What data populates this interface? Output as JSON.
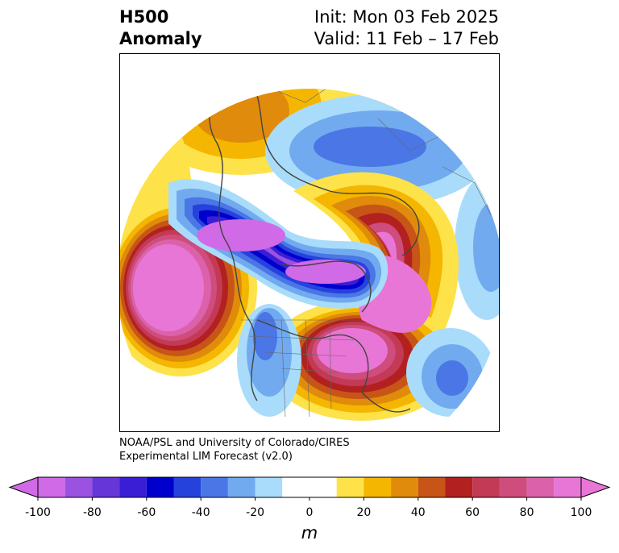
{
  "title": {
    "left_line1": "H500",
    "left_line2": "Anomaly",
    "right_line1": "Init: Mon 03 Feb 2025",
    "right_line2": "Valid: 11 Feb – 17 Feb"
  },
  "credit": {
    "line1": "NOAA/PSL and University of Colorado/CIRES",
    "line2": "Experimental LIM Forecast (v2.0)"
  },
  "colorbar": {
    "unit": "m",
    "ticks": [
      "-100",
      "-80",
      "-60",
      "-40",
      "-20",
      "0",
      "20",
      "40",
      "60",
      "80",
      "100"
    ],
    "levels": [
      -100,
      -90,
      -80,
      -70,
      -60,
      -50,
      -40,
      -30,
      -20,
      -10,
      10,
      20,
      30,
      40,
      50,
      60,
      70,
      80,
      90,
      100
    ],
    "colors": [
      "#d06ae6",
      "#9b52e0",
      "#6636d8",
      "#3a1ed6",
      "#0000cd",
      "#2642dd",
      "#4a76e6",
      "#72aaef",
      "#a9dcfb",
      "#ffffff",
      "#fde24a",
      "#f4b600",
      "#e08b0b",
      "#c65517",
      "#b32020",
      "#c23a55",
      "#cf4d7d",
      "#db62aa",
      "#e876d6"
    ],
    "under_color": "#d06ae6",
    "over_color": "#e876d6"
  }
}
